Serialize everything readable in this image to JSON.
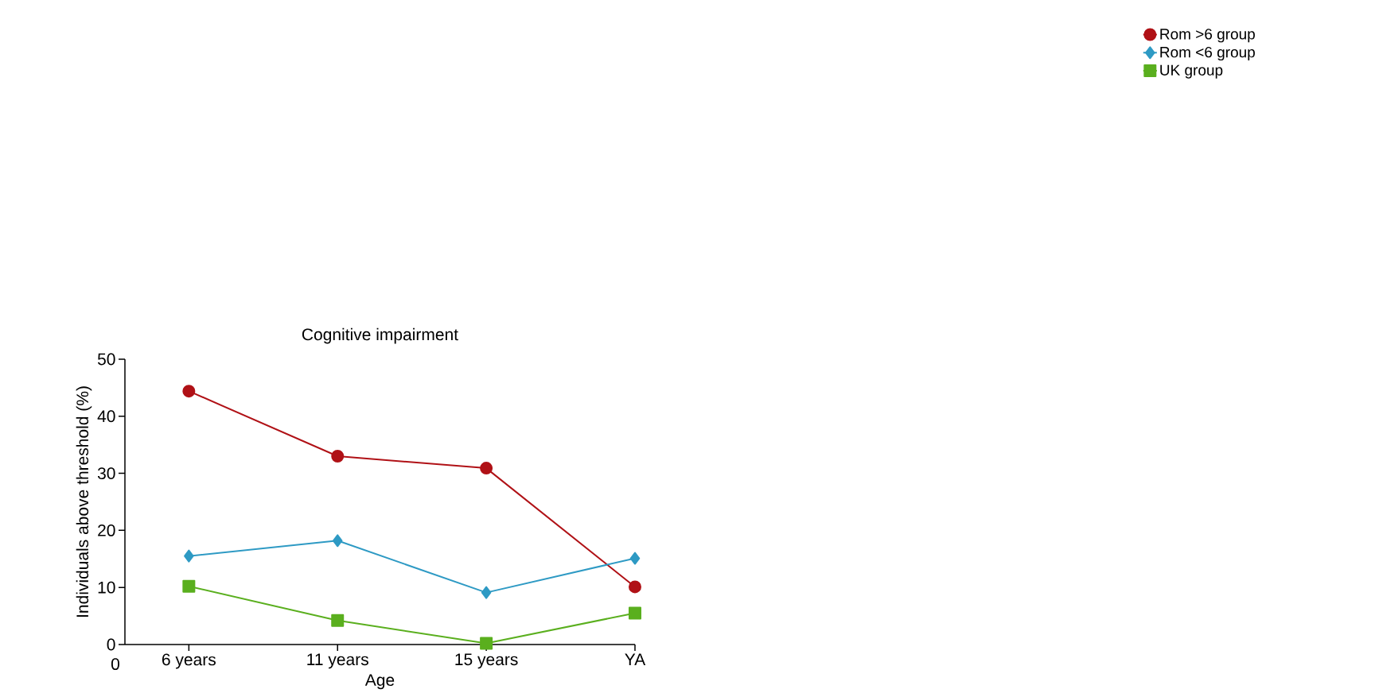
{
  "chart_data": {
    "type": "line",
    "title": "Cognitive impairment",
    "xlabel": "Age",
    "ylabel": "Individuals above threshold (%)",
    "categories": [
      "6 years",
      "11 years",
      "15 years",
      "YA"
    ],
    "series": [
      {
        "name": "Rom >6 group",
        "color": "#b01116",
        "marker": "circle",
        "values": [
          44.4,
          33.0,
          30.9,
          10.1
        ]
      },
      {
        "name": "Rom <6 group",
        "color": "#2e9ac4",
        "marker": "diamond",
        "values": [
          15.5,
          18.2,
          9.1,
          15.1
        ]
      },
      {
        "name": "UK group",
        "color": "#5aaf1e",
        "marker": "square",
        "values": [
          10.2,
          4.2,
          0.2,
          5.5
        ]
      }
    ],
    "ylim": [
      0,
      50
    ],
    "yticks": [
      0,
      10,
      20,
      30,
      40,
      50
    ],
    "annotations": [
      "0"
    ],
    "legend": "top right",
    "grid": false,
    "line_style": "solid"
  }
}
